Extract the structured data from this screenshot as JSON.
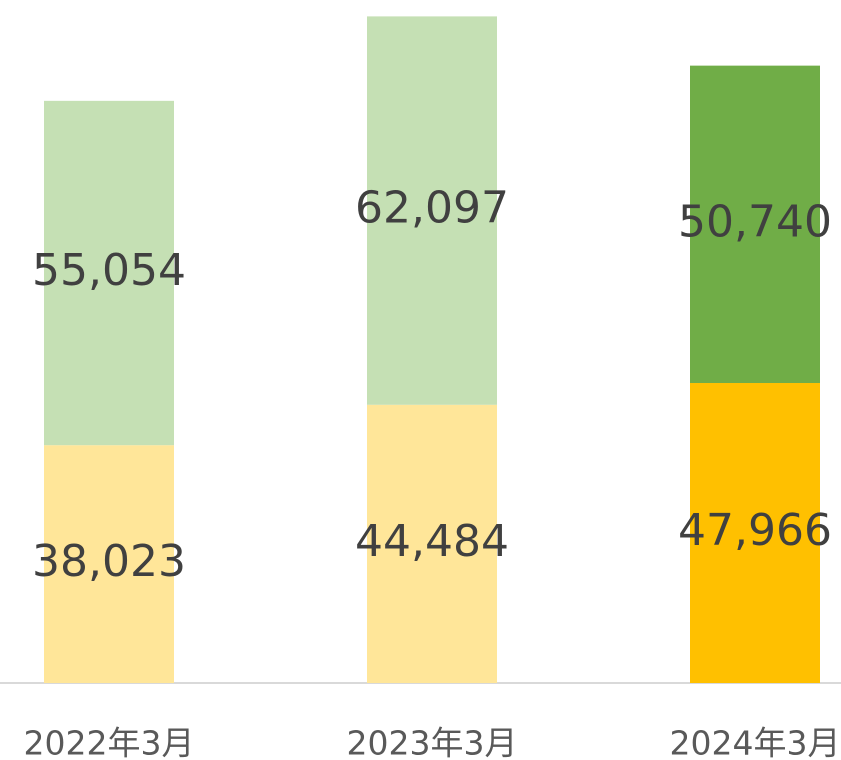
{
  "chart_data": {
    "type": "stacked_bar",
    "categories": [
      "2022年3月",
      "2023年3月",
      "2024年3月"
    ],
    "series": [
      {
        "colors": [
          "#ffe699",
          "#ffe699",
          "#ffc000"
        ],
        "values": [
          38023,
          44484,
          47966
        ]
      },
      {
        "colors": [
          "#c5e0b4",
          "#c5e0b4",
          "#70ad47"
        ],
        "values": [
          55054,
          62097,
          50740
        ]
      }
    ],
    "value_labels": [
      [
        "38,023",
        "44,484",
        "47,966"
      ],
      [
        "55,054",
        "62,097",
        "50,740"
      ]
    ],
    "ylim": [
      0,
      110000
    ]
  }
}
